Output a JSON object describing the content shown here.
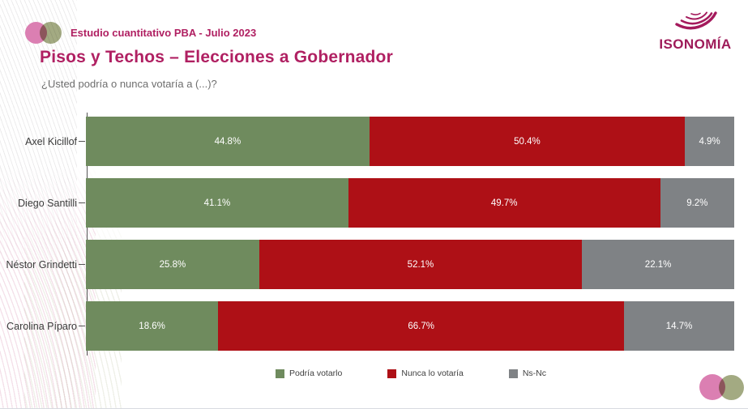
{
  "header": {
    "study_label": "Estudio cuantitativo PBA - Julio 2023",
    "logo_text": "ISONOMÍA"
  },
  "title": "Pisos y Techos – Elecciones a Gobernador",
  "subtitle": "¿Usted podría o nunca votaría a (...)?",
  "colors": {
    "accent_magenta": "#B02062",
    "logo_magenta": "#9E1B59",
    "circle_pink": "#DB7FB2",
    "circle_olive": "#A3AA82",
    "series_green": "#6F8B5E",
    "series_red": "#AE1016",
    "series_gray": "#7F8285"
  },
  "chart_data": {
    "type": "bar",
    "orientation": "horizontal",
    "stacked": true,
    "grid": false,
    "legend_position": "bottom",
    "xlim": [
      0,
      100
    ],
    "value_suffix": "%",
    "categories": [
      "Axel Kicillof",
      "Diego Santilli",
      "Néstor Grindetti",
      "Carolina Píparo"
    ],
    "series": [
      {
        "name": "Podría votarlo",
        "color": "#6F8B5E",
        "values": [
          44.8,
          41.1,
          25.8,
          18.6
        ]
      },
      {
        "name": "Nunca lo votaría",
        "color": "#AE1016",
        "values": [
          50.4,
          49.7,
          52.1,
          66.7
        ]
      },
      {
        "name": "Ns-Nc",
        "color": "#7F8285",
        "values": [
          4.9,
          9.2,
          22.1,
          14.7
        ]
      }
    ]
  }
}
